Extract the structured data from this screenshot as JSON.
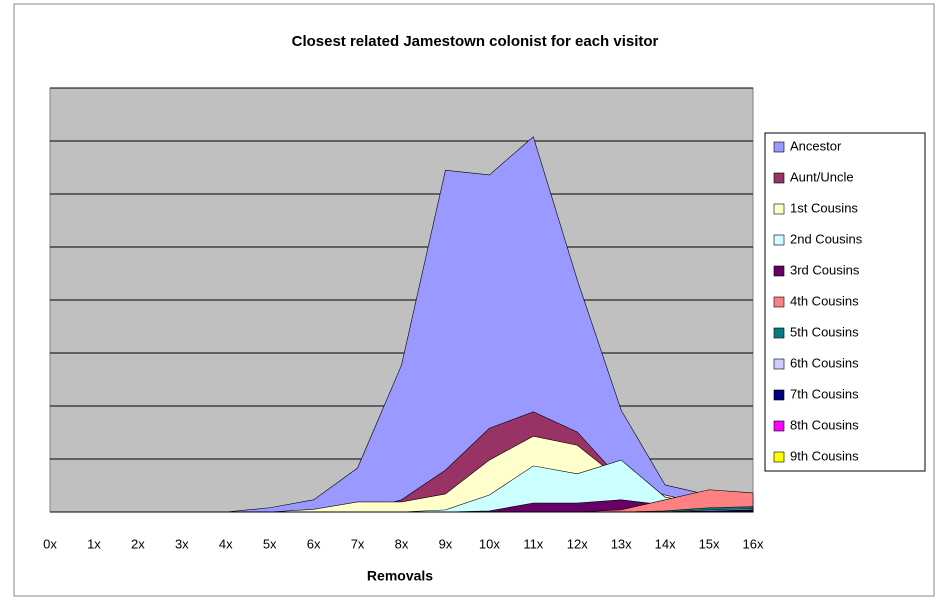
{
  "chart_data": {
    "type": "area",
    "title": "Closest related Jamestown colonist for each visitor",
    "x_label": "Removals",
    "categories": [
      "0x",
      "1x",
      "2x",
      "3x",
      "4x",
      "5x",
      "6x",
      "7x",
      "8x",
      "9x",
      "10x",
      "11x",
      "12x",
      "13x",
      "14x",
      "15x",
      "16x"
    ],
    "ylim": [
      0,
      8
    ],
    "yticks": [
      0,
      1,
      2,
      3,
      4,
      5,
      6,
      7,
      8
    ],
    "grid": true,
    "legend": "right",
    "series": [
      {
        "name": "Ancestor",
        "color": "#9999ff",
        "values": [
          0,
          0,
          0,
          0,
          0,
          0.08,
          0.23,
          0.83,
          2.77,
          6.45,
          6.36,
          7.08,
          4.38,
          1.92,
          0.51,
          0.32,
          0.23
        ]
      },
      {
        "name": "Aunt/Uncle",
        "color": "#993366",
        "values": [
          0,
          0,
          0,
          0,
          0,
          0,
          0,
          0,
          0.23,
          0.79,
          1.58,
          1.89,
          1.51,
          0.6,
          0.1,
          0,
          0
        ]
      },
      {
        "name": "1st Cousins",
        "color": "#ffffcc",
        "values": [
          0,
          0,
          0,
          0,
          0,
          0,
          0.05,
          0.19,
          0.19,
          0.34,
          0.98,
          1.43,
          1.26,
          0.6,
          0.32,
          0.13,
          0.04
        ]
      },
      {
        "name": "2nd Cousins",
        "color": "#ccffff",
        "values": [
          0,
          0,
          0,
          0,
          0,
          0,
          0,
          0,
          0,
          0.04,
          0.32,
          0.87,
          0.72,
          0.98,
          0.28,
          0.13,
          0.04
        ]
      },
      {
        "name": "3rd Cousins",
        "color": "#660066",
        "values": [
          0,
          0,
          0,
          0,
          0,
          0,
          0,
          0,
          0,
          0,
          0.02,
          0.17,
          0.17,
          0.23,
          0.13,
          0.08,
          0.04
        ]
      },
      {
        "name": "4th Cousins",
        "color": "#ff8080",
        "values": [
          0,
          0,
          0,
          0,
          0,
          0,
          0,
          0,
          0,
          0,
          0,
          0,
          0,
          0.04,
          0.23,
          0.42,
          0.36
        ]
      },
      {
        "name": "5th Cousins",
        "color": "#008080",
        "values": [
          0,
          0,
          0,
          0,
          0,
          0,
          0,
          0,
          0,
          0,
          0,
          0,
          0,
          0,
          0.02,
          0.08,
          0.1
        ]
      },
      {
        "name": "6th Cousins",
        "color": "#ccccff",
        "values": [
          0,
          0,
          0,
          0,
          0,
          0,
          0,
          0,
          0,
          0,
          0,
          0,
          0,
          0,
          0,
          0.04,
          0.06
        ]
      },
      {
        "name": "7th Cousins",
        "color": "#000080",
        "values": [
          0,
          0,
          0,
          0,
          0,
          0,
          0,
          0,
          0,
          0,
          0,
          0,
          0,
          0,
          0,
          0.02,
          0.04
        ]
      },
      {
        "name": "8th Cousins",
        "color": "#ff00ff",
        "values": [
          0,
          0,
          0,
          0,
          0,
          0,
          0,
          0,
          0,
          0,
          0,
          0,
          0,
          0,
          0,
          0,
          0.02
        ]
      },
      {
        "name": "9th Cousins",
        "color": "#ffff00",
        "values": [
          0,
          0,
          0,
          0,
          0,
          0,
          0,
          0,
          0,
          0,
          0,
          0,
          0,
          0,
          0,
          0,
          0.01
        ]
      }
    ]
  }
}
